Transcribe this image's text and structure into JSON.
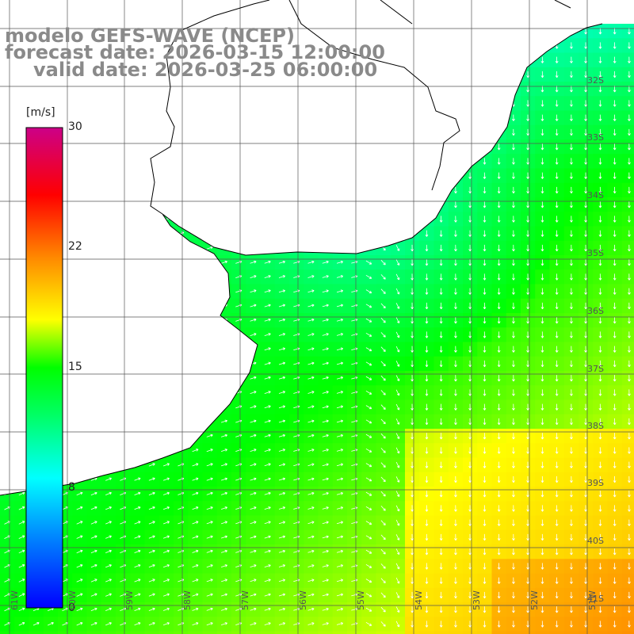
{
  "title": {
    "line1": "modelo GEFS-WAVE (NCEP)",
    "line2": "forecast date: 2026-03-15 12:00:00",
    "line3": "valid date: 2026-03-25 06:00:00"
  },
  "colorbar": {
    "unit_label": "[m/s]",
    "ticks": [
      "30",
      "22",
      "15",
      "8",
      "0"
    ],
    "tick_values": [
      30,
      22,
      15,
      8,
      0
    ]
  },
  "axes": {
    "lat_labels": [
      "32S",
      "33S",
      "34S",
      "35S",
      "36S",
      "37S",
      "38S",
      "39S",
      "40S",
      "41S"
    ],
    "lon_labels": [
      "61W",
      "60W",
      "59W",
      "58W",
      "57W",
      "56W",
      "55W",
      "54W",
      "53W",
      "52W",
      "51W"
    ]
  },
  "colors": {
    "land": "#ffffff",
    "coastline": "#000000",
    "grid": "#555555",
    "arrows": "#ffffff",
    "title_text": "#8a8a8a"
  }
}
